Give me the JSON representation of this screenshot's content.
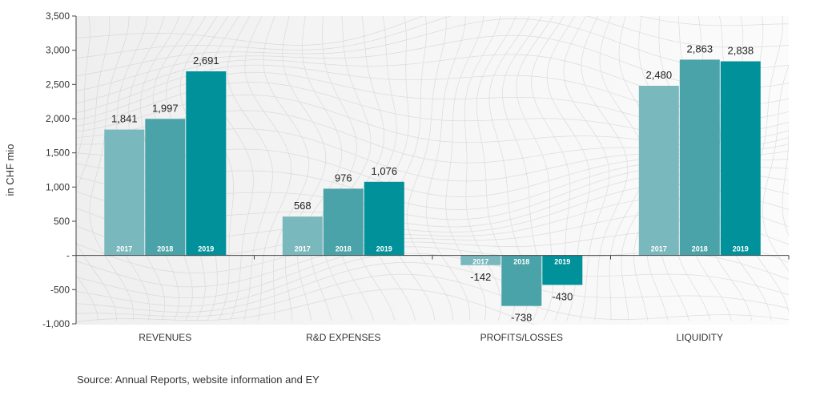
{
  "chart_data": {
    "type": "bar",
    "title": "",
    "xlabel": "",
    "ylabel": "in CHF mio",
    "ylim": [
      -1000,
      3500
    ],
    "y_ticks": [
      3500,
      3000,
      2500,
      2000,
      1500,
      1000,
      500,
      0,
      -500,
      -1000
    ],
    "y_tick_labels": [
      "3,500",
      "3,000",
      "2,500",
      "2,000",
      "1,500",
      "1,000",
      "500",
      "-",
      "-500",
      "-1,000"
    ],
    "categories": [
      "REVENUES",
      "R&D EXPENSES",
      "PROFITS/LOSSES",
      "LIQUIDITY"
    ],
    "series": [
      {
        "name": "2017",
        "color": "#79b8bd",
        "values": [
          1841,
          568,
          -142,
          2480
        ],
        "labels": [
          "1,841",
          "568",
          "-142",
          "2,480"
        ]
      },
      {
        "name": "2018",
        "color": "#4aa3a8",
        "values": [
          1997,
          976,
          -738,
          2863
        ],
        "labels": [
          "1,997",
          "976",
          "-738",
          "2,863"
        ]
      },
      {
        "name": "2019",
        "color": "#00919a",
        "values": [
          2691,
          1076,
          -430,
          2838
        ],
        "labels": [
          "2,691",
          "1,076",
          "-430",
          "2,838"
        ]
      }
    ],
    "grid": false,
    "legend": "none"
  },
  "source": "Source: Annual Reports, website information and EY"
}
